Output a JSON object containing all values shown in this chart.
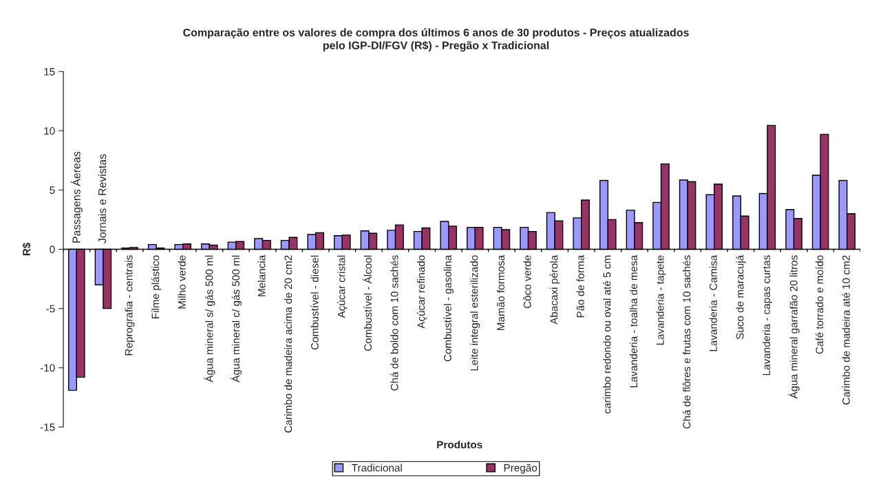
{
  "chart_data": {
    "type": "bar",
    "title": "Comparação entre os valores de compra dos últimos 6 anos de 30 produtos - Preços atualizados\npelo IGP-DI/FGV (R$) - Pregão x Tradicional",
    "xlabel": "Produtos",
    "ylabel": "R$",
    "categories": [
      "Passagens Áereas",
      "Jornais e Revistas",
      "Reprografia - centrais",
      "Filme plástico",
      "Milho verde",
      "Água mineral s/ gás 500 ml",
      "Água mineral c/ gás 500 ml",
      "Melancia",
      "Carimbo de madeira acima de 20 cm2",
      "Combustível - diesel",
      "Açúcar cristal",
      "Combustível - Álcool",
      "Chá de boldo com 10 sachés",
      "Açúcar refinado",
      "Combustível - gasolina",
      "Leite integral esterilizado",
      "Mamão formosa",
      "Côco verde",
      "Abacaxi pérola",
      "Pão de forma",
      "carimbo redondo ou oval até 5 cm",
      "Lavanderia - toalha de mesa",
      "Lavanderia - tapete",
      "Chá de flôres e frutas com 10 sachés",
      "Lavanderia - Camisa",
      "Suco de maracujá",
      "Lavanderia - capas curtas",
      "Água mineral garrafão 20 litros",
      "Café torrado e moído",
      "Carimbo de madeira até 10 cm2"
    ],
    "series": [
      {
        "name": "Tradicional",
        "color": "#9999ff",
        "values": [
          -11.9,
          -3.0,
          0.1,
          0.4,
          0.4,
          0.45,
          0.6,
          0.9,
          0.75,
          1.25,
          1.15,
          1.55,
          1.6,
          1.5,
          2.35,
          1.85,
          1.85,
          1.85,
          3.1,
          2.65,
          5.8,
          3.3,
          3.95,
          5.85,
          4.6,
          4.5,
          4.7,
          3.35,
          6.25,
          5.8
        ]
      },
      {
        "name": "Pregão",
        "color": "#993366",
        "values": [
          -10.8,
          -5.0,
          0.15,
          0.1,
          0.45,
          0.35,
          0.65,
          0.75,
          1.0,
          1.4,
          1.2,
          1.35,
          2.05,
          1.8,
          1.95,
          1.85,
          1.65,
          1.5,
          2.4,
          4.15,
          2.5,
          2.25,
          7.2,
          5.7,
          5.5,
          2.8,
          10.45,
          2.6,
          9.7,
          3.0
        ]
      }
    ],
    "ylim": [
      -15,
      15
    ],
    "yticks": [
      -15,
      -10,
      -5,
      0,
      5,
      10,
      15
    ],
    "grid": false,
    "legend": "bottom"
  }
}
